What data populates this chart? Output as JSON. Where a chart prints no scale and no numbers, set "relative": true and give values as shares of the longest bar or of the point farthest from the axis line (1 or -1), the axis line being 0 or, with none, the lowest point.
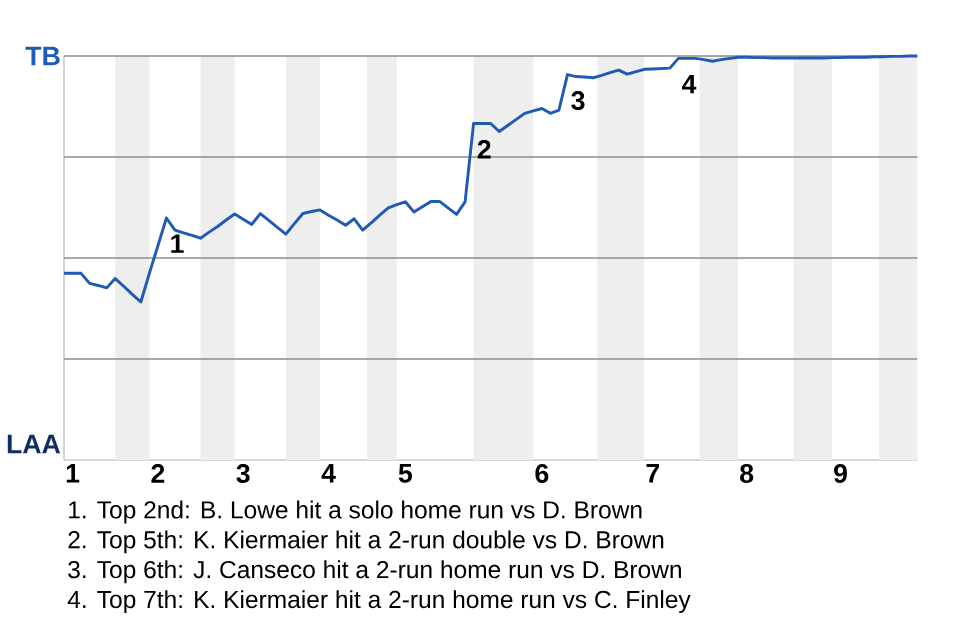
{
  "chart_data": {
    "type": "line",
    "relative": true,
    "categories": [
      null,
      "1",
      null,
      null,
      null,
      null,
      null,
      null,
      null,
      null,
      null,
      "2",
      null,
      null,
      null,
      null,
      null,
      null,
      null,
      null,
      null,
      "3",
      null,
      null,
      null,
      null,
      null,
      null,
      null,
      null,
      null,
      "4",
      null,
      null,
      null,
      null,
      null,
      null,
      null,
      null,
      "5",
      null,
      null,
      null,
      null,
      null,
      null,
      null,
      null,
      null,
      null,
      null,
      null,
      null,
      null,
      null,
      "6",
      null,
      null,
      null,
      null,
      null,
      null,
      null,
      null,
      null,
      null,
      null,
      null,
      "7",
      null,
      null,
      null,
      null,
      null,
      null,
      null,
      null,
      null,
      null,
      "8",
      null,
      null,
      null,
      null,
      null,
      null,
      null,
      null,
      null,
      null,
      "9",
      null,
      null,
      null,
      null,
      null,
      null,
      null,
      null,
      null
    ],
    "series": [
      {
        "color": "#1f5bb5",
        "values": [
          0.462,
          0.462,
          0.462,
          0.437,
          0.432,
          0.426,
          0.449,
          0.43,
          0.41,
          0.391,
          0.462,
          0.53,
          0.599,
          0.569,
          0.562,
          0.556,
          0.549,
          0.564,
          0.578,
          0.594,
          0.609,
          0.596,
          0.583,
          0.61,
          0.593,
          0.576,
          0.559,
          0.585,
          0.61,
          0.615,
          0.619,
          0.606,
          0.594,
          0.581,
          0.597,
          0.569,
          0.587,
          0.606,
          0.624,
          0.632,
          0.639,
          0.614,
          0.627,
          0.64,
          0.64,
          0.624,
          0.608,
          0.639,
          0.833,
          0.833,
          0.833,
          0.813,
          0.828,
          0.843,
          0.858,
          0.864,
          0.87,
          0.858,
          0.866,
          0.954,
          0.949,
          0.948,
          0.946,
          0.952,
          0.959,
          0.965,
          0.955,
          0.961,
          0.967,
          0.968,
          0.969,
          0.97,
          0.994,
          0.994,
          0.994,
          0.991,
          0.987,
          0.991,
          0.994,
          0.997,
          0.997,
          0.996,
          0.996,
          0.995,
          0.995,
          0.995,
          0.995,
          0.995,
          0.995,
          0.995,
          0.996,
          0.996,
          0.997,
          0.997,
          0.997,
          0.998,
          0.998,
          0.999,
          0.999,
          1.0,
          1.0
        ]
      }
    ],
    "grid": "y",
    "annotations": [
      "TB",
      "LAA",
      {
        "text": "1",
        "y": 0.599
      },
      {
        "text": "2",
        "y": 0.833
      },
      {
        "text": "3",
        "y": 0.954
      },
      {
        "text": "4",
        "y": 0.994
      },
      "1. Top 2nd: B. Lowe hit a solo home run vs D. Brown",
      "2. Top 5th: K. Kiermaier hit a 2-run double vs D. Brown",
      "3. Top 6th: J. Canseco hit a 2-run home run vs D. Brown",
      "4. Top 7th: K. Kiermaier hit a 2-run home run vs C. Finley"
    ]
  }
}
